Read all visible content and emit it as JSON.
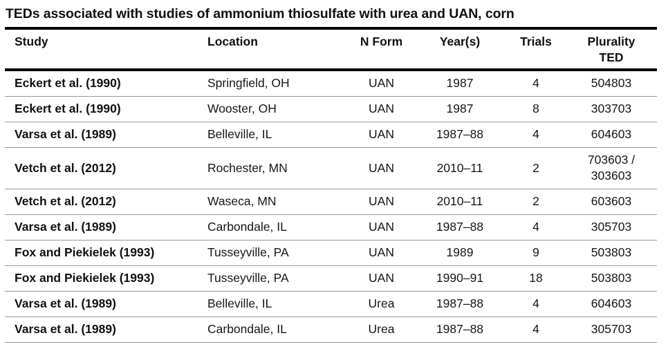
{
  "title": "TEDs associated with studies of ammonium thiosulfate with urea and UAN, corn",
  "accent_colors": {
    "text": "#111111",
    "thick_rule": "#000000",
    "row_separator": "#979797",
    "background": "#ffffff"
  },
  "chart_data": {
    "type": "table",
    "title": "TEDs associated with studies of ammonium thiosulfate with urea and UAN, corn",
    "columns": [
      "Study",
      "Location",
      "N Form",
      "Year(s)",
      "Trials",
      "Plurality TED"
    ],
    "column_headers_display": [
      "Study",
      "Location",
      "N Form",
      "Year(s)",
      "Trials",
      "Plurality\nTED"
    ],
    "column_alignments": [
      "left",
      "left",
      "center",
      "center",
      "center",
      "center"
    ],
    "rows": [
      {
        "study": "Eckert et al. (1990)",
        "location": "Springfield, OH",
        "n_form": "UAN",
        "years": "1987",
        "trials": 4,
        "plurality_ted": "504803"
      },
      {
        "study": "Eckert et al. (1990)",
        "location": "Wooster, OH",
        "n_form": "UAN",
        "years": "1987",
        "trials": 8,
        "plurality_ted": "303703"
      },
      {
        "study": "Varsa et al. (1989)",
        "location": "Belleville, IL",
        "n_form": "UAN",
        "years": "1987–88",
        "trials": 4,
        "plurality_ted": "604603"
      },
      {
        "study": "Vetch et al. (2012)",
        "location": "Rochester, MN",
        "n_form": "UAN",
        "years": "2010–11",
        "trials": 2,
        "plurality_ted": "703603 /\n303603"
      },
      {
        "study": "Vetch et al. (2012)",
        "location": "Waseca, MN",
        "n_form": "UAN",
        "years": "2010–11",
        "trials": 2,
        "plurality_ted": "603603"
      },
      {
        "study": "Varsa et al. (1989)",
        "location": "Carbondale, IL",
        "n_form": "UAN",
        "years": "1987–88",
        "trials": 4,
        "plurality_ted": "305703"
      },
      {
        "study": "Fox and Piekielek (1993)",
        "location": "Tusseyville, PA",
        "n_form": "UAN",
        "years": "1989",
        "trials": 9,
        "plurality_ted": "503803"
      },
      {
        "study": "Fox and Piekielek (1993)",
        "location": "Tusseyville, PA",
        "n_form": "UAN",
        "years": "1990–91",
        "trials": 18,
        "plurality_ted": "503803"
      },
      {
        "study": "Varsa et al. (1989)",
        "location": "Belleville, IL",
        "n_form": "Urea",
        "years": "1987–88",
        "trials": 4,
        "plurality_ted": "604603"
      },
      {
        "study": "Varsa et al. (1989)",
        "location": "Carbondale, IL",
        "n_form": "Urea",
        "years": "1987–88",
        "trials": 4,
        "plurality_ted": "305703"
      }
    ]
  }
}
